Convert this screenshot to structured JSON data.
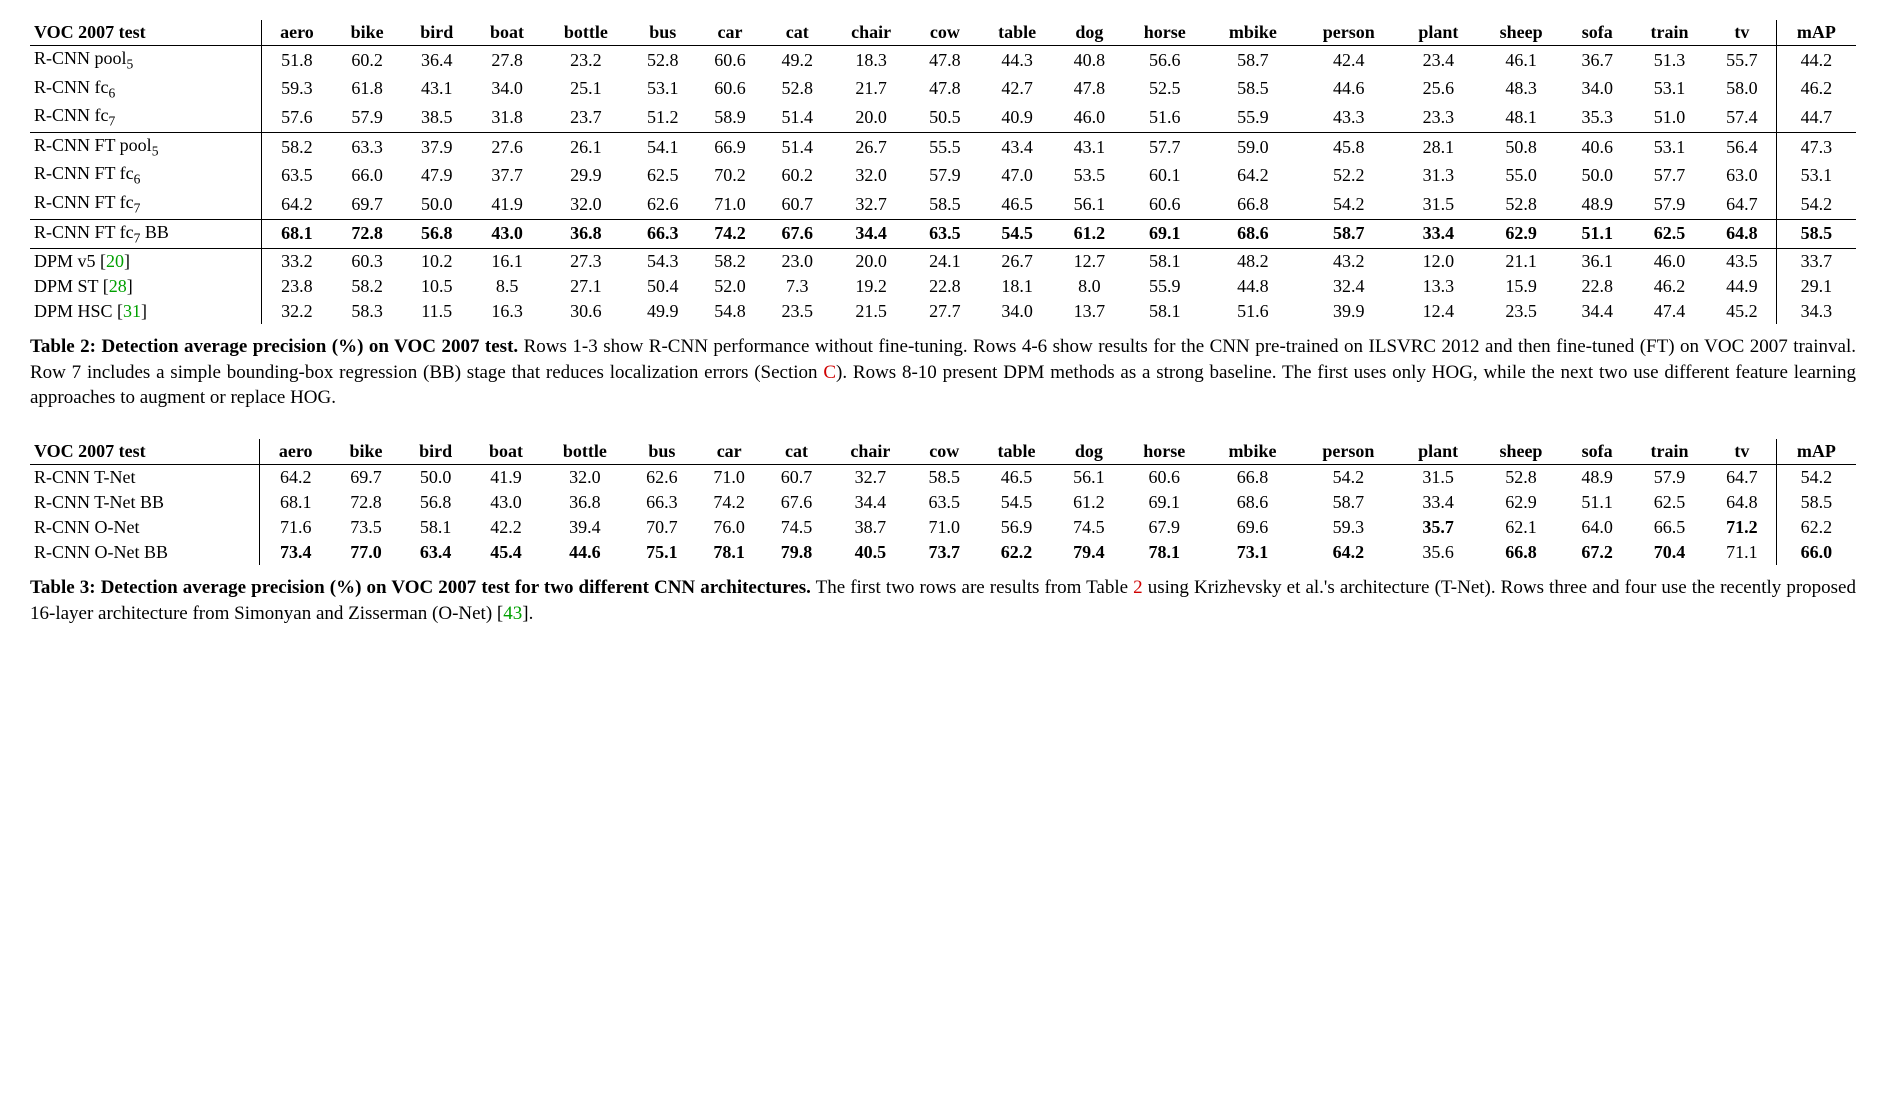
{
  "colors": {
    "text": "#000000",
    "background": "#ffffff",
    "refGreen": "#00a000",
    "refRed": "#d00000",
    "rule": "#000000"
  },
  "typography": {
    "fontFamily": "Times New Roman, serif",
    "baseFontSize": 18,
    "captionFontSize": 19
  },
  "table2": {
    "headerLabel": "VOC 2007 test",
    "columns": [
      "aero",
      "bike",
      "bird",
      "boat",
      "bottle",
      "bus",
      "car",
      "cat",
      "chair",
      "cow",
      "table",
      "dog",
      "horse",
      "mbike",
      "person",
      "plant",
      "sheep",
      "sofa",
      "train",
      "tv"
    ],
    "mapLabel": "mAP",
    "groups": [
      {
        "rows": [
          {
            "label": "R-CNN pool",
            "sub": "5",
            "vals": [
              51.8,
              60.2,
              36.4,
              27.8,
              23.2,
              52.8,
              60.6,
              49.2,
              18.3,
              47.8,
              44.3,
              40.8,
              56.6,
              58.7,
              42.4,
              23.4,
              46.1,
              36.7,
              51.3,
              55.7
            ],
            "map": 44.2
          },
          {
            "label": "R-CNN fc",
            "sub": "6",
            "vals": [
              59.3,
              61.8,
              43.1,
              34.0,
              25.1,
              53.1,
              60.6,
              52.8,
              21.7,
              47.8,
              42.7,
              47.8,
              52.5,
              58.5,
              44.6,
              25.6,
              48.3,
              34.0,
              53.1,
              58.0
            ],
            "map": 46.2
          },
          {
            "label": "R-CNN fc",
            "sub": "7",
            "vals": [
              57.6,
              57.9,
              38.5,
              31.8,
              23.7,
              51.2,
              58.9,
              51.4,
              20.0,
              50.5,
              40.9,
              46.0,
              51.6,
              55.9,
              43.3,
              23.3,
              48.1,
              35.3,
              51.0,
              57.4
            ],
            "map": 44.7
          }
        ]
      },
      {
        "rows": [
          {
            "label": "R-CNN FT pool",
            "sub": "5",
            "vals": [
              58.2,
              63.3,
              37.9,
              27.6,
              26.1,
              54.1,
              66.9,
              51.4,
              26.7,
              55.5,
              43.4,
              43.1,
              57.7,
              59.0,
              45.8,
              28.1,
              50.8,
              40.6,
              53.1,
              56.4
            ],
            "map": 47.3
          },
          {
            "label": "R-CNN FT fc",
            "sub": "6",
            "vals": [
              63.5,
              66.0,
              47.9,
              37.7,
              29.9,
              62.5,
              70.2,
              60.2,
              32.0,
              57.9,
              47.0,
              53.5,
              60.1,
              64.2,
              52.2,
              31.3,
              55.0,
              50.0,
              57.7,
              63.0
            ],
            "map": 53.1
          },
          {
            "label": "R-CNN FT fc",
            "sub": "7",
            "vals": [
              64.2,
              69.7,
              50.0,
              41.9,
              32.0,
              62.6,
              71.0,
              60.7,
              32.7,
              58.5,
              46.5,
              56.1,
              60.6,
              66.8,
              54.2,
              31.5,
              52.8,
              48.9,
              57.9,
              64.7
            ],
            "map": 54.2
          }
        ]
      },
      {
        "rows": [
          {
            "label": "R-CNN FT fc",
            "sub": "7",
            "suffix": " BB",
            "bold": true,
            "vals": [
              68.1,
              72.8,
              56.8,
              43.0,
              36.8,
              66.3,
              74.2,
              67.6,
              34.4,
              63.5,
              54.5,
              61.2,
              69.1,
              68.6,
              58.7,
              33.4,
              62.9,
              51.1,
              62.5,
              64.8
            ],
            "map": 58.5
          }
        ]
      },
      {
        "rows": [
          {
            "label": "DPM v5 [",
            "ref": "20",
            "refColor": "green",
            "labelEnd": "]",
            "vals": [
              33.2,
              60.3,
              10.2,
              16.1,
              27.3,
              54.3,
              58.2,
              23.0,
              20.0,
              24.1,
              26.7,
              12.7,
              58.1,
              48.2,
              43.2,
              12.0,
              21.1,
              36.1,
              46.0,
              43.5
            ],
            "map": 33.7
          },
          {
            "label": "DPM ST [",
            "ref": "28",
            "refColor": "green",
            "labelEnd": "]",
            "vals": [
              23.8,
              58.2,
              10.5,
              8.5,
              27.1,
              50.4,
              52.0,
              7.3,
              19.2,
              22.8,
              18.1,
              8.0,
              55.9,
              44.8,
              32.4,
              13.3,
              15.9,
              22.8,
              46.2,
              44.9
            ],
            "map": 29.1
          },
          {
            "label": "DPM HSC [",
            "ref": "31",
            "refColor": "green",
            "labelEnd": "]",
            "vals": [
              32.2,
              58.3,
              11.5,
              16.3,
              30.6,
              49.9,
              54.8,
              23.5,
              21.5,
              27.7,
              34.0,
              13.7,
              58.1,
              51.6,
              39.9,
              12.4,
              23.5,
              34.4,
              47.4,
              45.2
            ],
            "map": 34.3
          }
        ],
        "last": true
      }
    ],
    "caption": {
      "lead": "Table 2: Detection average precision (%) on VOC 2007 test.",
      "body1": " Rows 1-3 show R-CNN performance without fine-tuning. Rows 4-6 show results for the CNN pre-trained on ILSVRC 2012 and then fine-tuned (FT) on VOC 2007 trainval. Row 7 includes a simple bounding-box regression (BB) stage that reduces localization errors (Section ",
      "secRef": "C",
      "body2": "). Rows 8-10 present DPM methods as a strong baseline. The first uses only HOG, while the next two use different feature learning approaches to augment or replace HOG."
    }
  },
  "table3": {
    "headerLabel": "VOC 2007 test",
    "columns": [
      "aero",
      "bike",
      "bird",
      "boat",
      "bottle",
      "bus",
      "car",
      "cat",
      "chair",
      "cow",
      "table",
      "dog",
      "horse",
      "mbike",
      "person",
      "plant",
      "sheep",
      "sofa",
      "train",
      "tv"
    ],
    "mapLabel": "mAP",
    "rows": [
      {
        "label": "R-CNN T-Net",
        "vals": [
          64.2,
          69.7,
          50.0,
          41.9,
          32.0,
          62.6,
          71.0,
          60.7,
          32.7,
          58.5,
          46.5,
          56.1,
          60.6,
          66.8,
          54.2,
          31.5,
          52.8,
          48.9,
          57.9,
          64.7
        ],
        "map": 54.2
      },
      {
        "label": "R-CNN T-Net BB",
        "vals": [
          68.1,
          72.8,
          56.8,
          43.0,
          36.8,
          66.3,
          74.2,
          67.6,
          34.4,
          63.5,
          54.5,
          61.2,
          69.1,
          68.6,
          58.7,
          33.4,
          62.9,
          51.1,
          62.5,
          64.8
        ],
        "map": 58.5
      },
      {
        "label": "R-CNN O-Net",
        "vals": [
          71.6,
          73.5,
          58.1,
          42.2,
          39.4,
          70.7,
          76.0,
          74.5,
          38.7,
          71.0,
          56.9,
          74.5,
          67.9,
          69.6,
          59.3,
          35.7,
          62.1,
          64.0,
          66.5,
          71.2
        ],
        "map": 62.2,
        "boldCols": [
          15,
          19
        ]
      },
      {
        "label": "R-CNN O-Net BB",
        "vals": [
          73.4,
          77.0,
          63.4,
          45.4,
          44.6,
          75.1,
          78.1,
          79.8,
          40.5,
          73.7,
          62.2,
          79.4,
          78.1,
          73.1,
          64.2,
          35.6,
          66.8,
          67.2,
          70.4,
          71.1
        ],
        "map": 66.0,
        "bold": true,
        "plainCols": [
          15,
          19
        ]
      }
    ],
    "caption": {
      "lead": "Table 3: Detection average precision (%) on VOC 2007 test for two different CNN architectures.",
      "body1": " The first two rows are results from Table ",
      "tblRef": "2",
      "body2": " using Krizhevsky et al.'s architecture (T-Net). Rows three and four use the recently proposed 16-layer architecture from Simonyan and Zisserman (O-Net) [",
      "ref": "43",
      "body3": "]."
    }
  }
}
